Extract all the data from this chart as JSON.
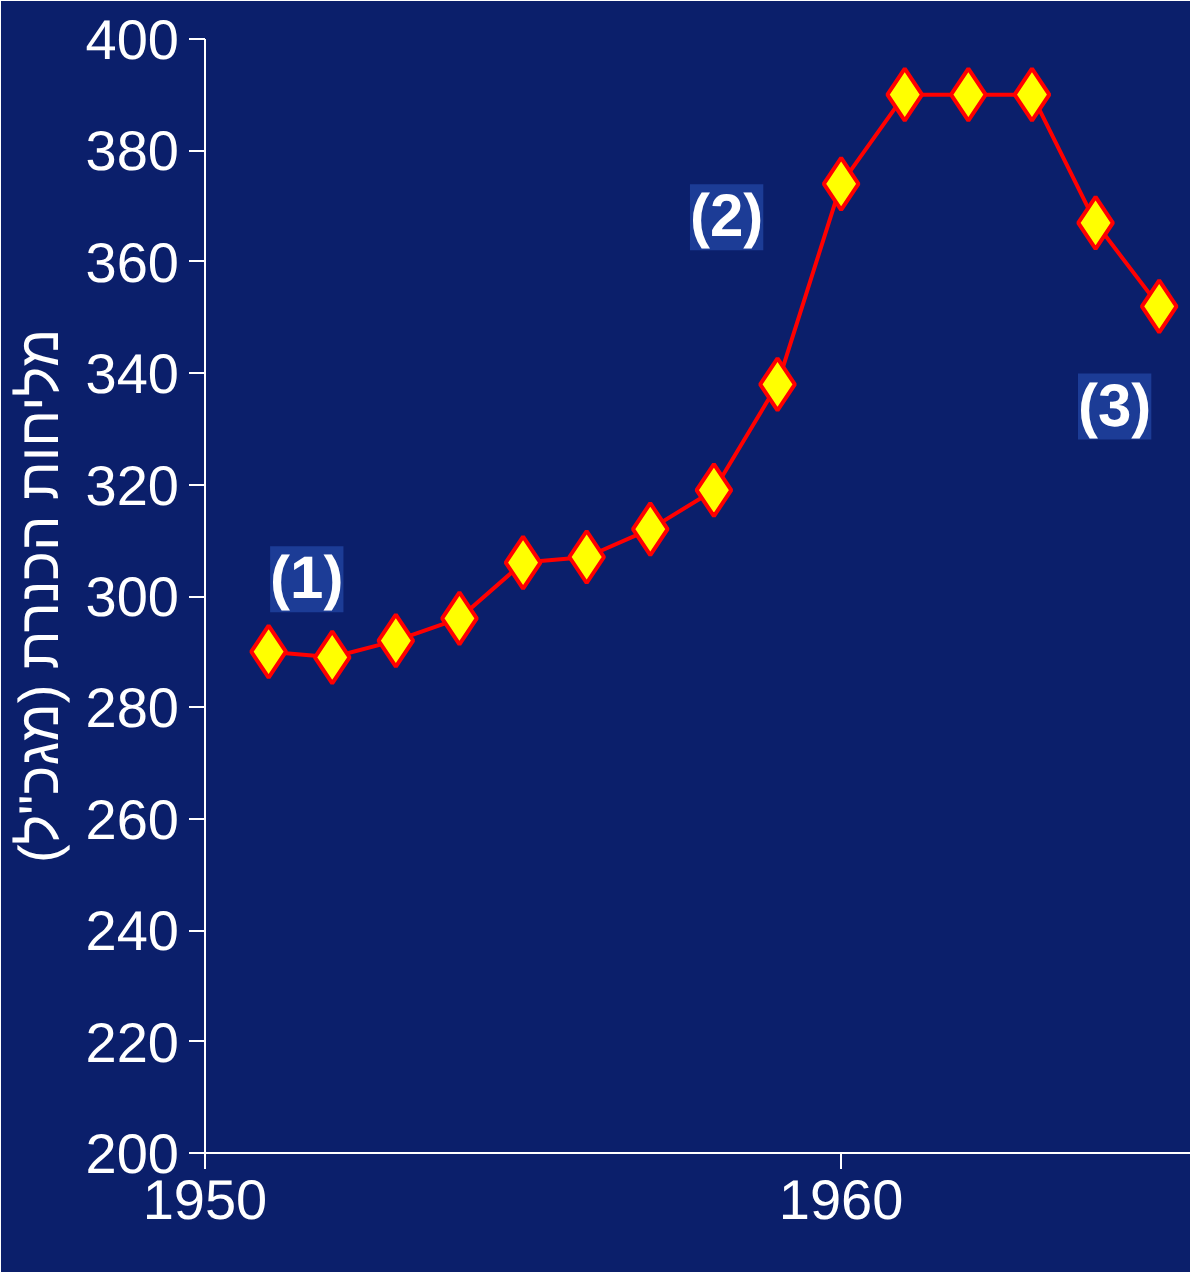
{
  "chart_data": {
    "type": "line",
    "ylabel": "מליחות הכנרת (מגכ\"ל)",
    "x": [
      1951,
      1952,
      1953,
      1954,
      1955,
      1956,
      1957,
      1958,
      1959,
      1960,
      1961,
      1962,
      1963,
      1964,
      1965
    ],
    "series": [
      {
        "color": "#ff0000",
        "values": [
          290,
          289,
          292,
          296,
          306,
          307,
          312,
          319,
          338,
          374,
          390,
          390,
          390,
          367,
          352
        ]
      }
    ],
    "xlim": [
      1950,
      1965.5
    ],
    "xticks": [
      1950,
      1960
    ],
    "ylim": [
      200,
      400
    ],
    "yticks": [
      200,
      220,
      240,
      260,
      280,
      300,
      320,
      340,
      360,
      380,
      400
    ],
    "grid": false,
    "marker": "diamond",
    "line_style": "solid",
    "annotations": [
      {
        "text": "(1)",
        "x": 1951.6,
        "y": 303
      },
      {
        "text": "(2)",
        "x": 1958.2,
        "y": 368
      },
      {
        "text": "(3)",
        "x": 1964.3,
        "y": 334
      }
    ]
  }
}
